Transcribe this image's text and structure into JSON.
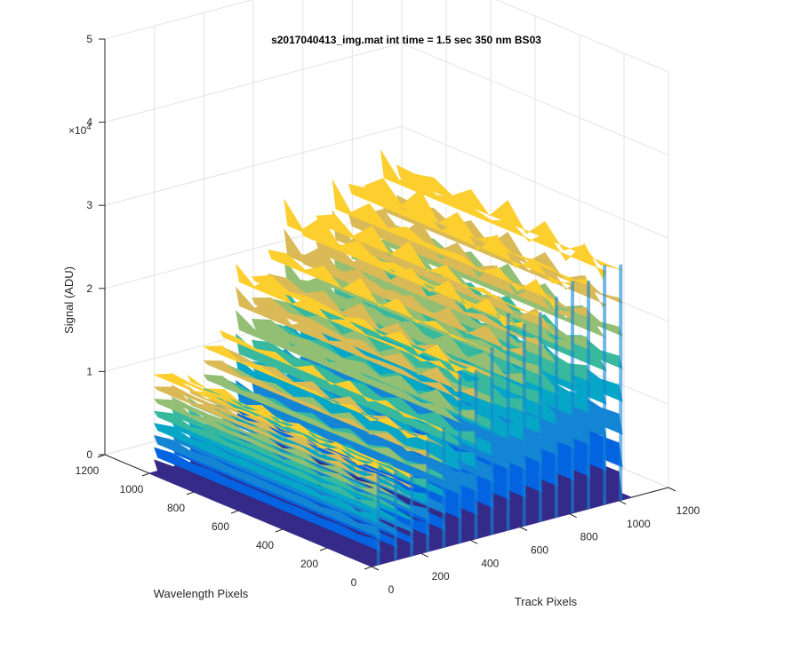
{
  "chart_data": {
    "type": "surface",
    "title": "s2017040413_img.mat int time = 1.5 sec  350 nm BS03",
    "xlabel": "Track Pixels",
    "ylabel": "Wavelength Pixels",
    "zlabel": "Signal (ADU)",
    "z_exponent_label": "×10",
    "z_exponent_power": "4",
    "xlim": [
      0,
      1200
    ],
    "ylim": [
      0,
      1200
    ],
    "zlim": [
      0,
      50000
    ],
    "x_ticks": [
      "0",
      "200",
      "400",
      "600",
      "800",
      "1000",
      "1200"
    ],
    "y_ticks": [
      "0",
      "200",
      "400",
      "600",
      "800",
      "1000",
      "1200"
    ],
    "z_ticks": [
      "0",
      "1",
      "2",
      "3",
      "4",
      "5"
    ],
    "grid": true,
    "colormap": "parula",
    "colors": [
      "#352a87",
      "#0363e1",
      "#1485d4",
      "#06a7c6",
      "#38b99e",
      "#92bf73",
      "#d9ba56",
      "#fcce2e"
    ],
    "background_region": {
      "x": [
        0,
        1050
      ],
      "y": [
        0,
        1000
      ],
      "z": 0
    },
    "track_peaks": {
      "x": [
        20,
        90,
        155,
        220,
        285,
        350,
        415,
        480,
        545,
        610,
        675,
        740,
        805,
        870,
        935,
        1000
      ],
      "z_max": [
        13000,
        12000,
        11000,
        15000,
        16000,
        23000,
        22500,
        25000,
        29000,
        27000,
        28000,
        29500,
        31000,
        30500,
        32000,
        31500
      ]
    }
  }
}
